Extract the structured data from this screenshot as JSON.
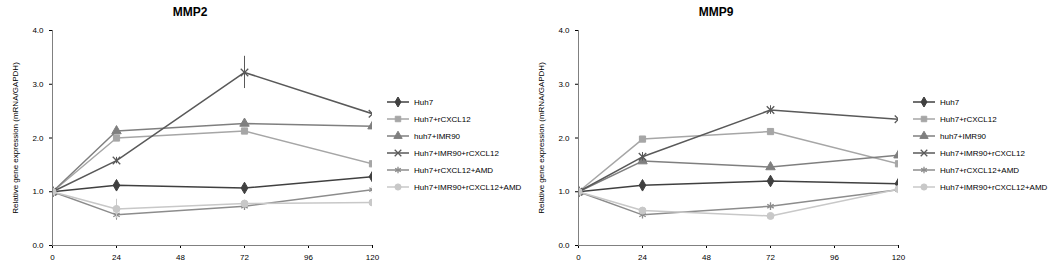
{
  "chart_data": [
    {
      "type": "line",
      "title": "MMP2",
      "y_label": "Relative gene expression (mRNA/GAPDH)",
      "x": [
        0,
        24,
        72,
        120
      ],
      "xlim": [
        0,
        120
      ],
      "xticks": [
        0,
        24,
        48,
        72,
        96,
        120
      ],
      "ylim": [
        0,
        4
      ],
      "yticks": [
        {
          "value": 0,
          "label": "0.0"
        },
        {
          "value": 1,
          "label": "1.0"
        },
        {
          "value": 2,
          "label": "2.0"
        },
        {
          "value": 3,
          "label": "3.0"
        },
        {
          "value": 4,
          "label": "4.0"
        }
      ],
      "legend": "right",
      "series": [
        {
          "name": "Huh7",
          "color": "#404040",
          "marker": "diamond",
          "values": [
            1.0,
            1.12,
            1.07,
            1.28
          ],
          "errors": [
            0,
            0.05,
            0.03,
            0.04
          ]
        },
        {
          "name": "Huh7+rCXCL12",
          "color": "#a6a6a6",
          "marker": "square",
          "values": [
            1.0,
            2.0,
            2.13,
            1.52
          ],
          "errors": [
            0,
            0.04,
            0.05,
            0.04
          ]
        },
        {
          "name": "huh7+IMR90",
          "color": "#7f7f7f",
          "marker": "triangle",
          "values": [
            1.0,
            2.13,
            2.27,
            2.22
          ],
          "errors": [
            0,
            0.04,
            0.04,
            0.05
          ]
        },
        {
          "name": "Huh7+IMR90+rCXCL12",
          "color": "#595959",
          "marker": "times",
          "values": [
            1.0,
            1.58,
            3.22,
            2.45
          ],
          "errors": [
            0,
            0.06,
            0.3,
            0.12
          ]
        },
        {
          "name": "Huh7+rCXCL12+AMD",
          "color": "#8c8c8c",
          "marker": "asterisk",
          "values": [
            1.0,
            0.57,
            0.73,
            1.04
          ],
          "errors": [
            0,
            0.1,
            0.07,
            0.08
          ]
        },
        {
          "name": "Huh7+IMR90+rCXCL12+AMD",
          "color": "#c8c8c8",
          "marker": "circle",
          "values": [
            1.0,
            0.68,
            0.78,
            0.8
          ],
          "errors": [
            0,
            0.18,
            0.06,
            0.18
          ]
        }
      ]
    },
    {
      "type": "line",
      "title": "MMP9",
      "y_label": "Relative gene expression (mRNA/GAPDH)",
      "x": [
        0,
        24,
        72,
        120
      ],
      "xlim": [
        0,
        120
      ],
      "xticks": [
        0,
        24,
        48,
        72,
        96,
        120
      ],
      "ylim": [
        0,
        4
      ],
      "yticks": [
        {
          "value": 0,
          "label": "0.0"
        },
        {
          "value": 1,
          "label": "1.0"
        },
        {
          "value": 2,
          "label": "2.0"
        },
        {
          "value": 3,
          "label": "3.0"
        },
        {
          "value": 4,
          "label": "4.0"
        }
      ],
      "legend": "right",
      "series": [
        {
          "name": "Huh7",
          "color": "#404040",
          "marker": "diamond",
          "values": [
            1.0,
            1.12,
            1.2,
            1.15
          ],
          "errors": [
            0,
            0.03,
            0.03,
            0.03
          ]
        },
        {
          "name": "Huh7+rCXCL12",
          "color": "#a6a6a6",
          "marker": "square",
          "values": [
            1.0,
            1.98,
            2.12,
            1.52
          ],
          "errors": [
            0,
            0.04,
            0.05,
            0.04
          ]
        },
        {
          "name": "huh7+IMR90",
          "color": "#7f7f7f",
          "marker": "triangle",
          "values": [
            1.0,
            1.57,
            1.46,
            1.68
          ],
          "errors": [
            0,
            0.04,
            0.04,
            0.12
          ]
        },
        {
          "name": "Huh7+IMR90+rCXCL12",
          "color": "#595959",
          "marker": "times",
          "values": [
            1.0,
            1.65,
            2.52,
            2.35
          ],
          "errors": [
            0,
            0.08,
            0.08,
            0.04
          ]
        },
        {
          "name": "Huh7+rCXCL12+AMD",
          "color": "#8c8c8c",
          "marker": "asterisk",
          "values": [
            1.0,
            0.57,
            0.73,
            1.04
          ],
          "errors": [
            0,
            0.04,
            0.06,
            0.05
          ]
        },
        {
          "name": "Huh7+IMR90+rCXCL12+AMD",
          "color": "#c8c8c8",
          "marker": "circle",
          "values": [
            1.0,
            0.65,
            0.55,
            1.05
          ],
          "errors": [
            0,
            0.04,
            0.04,
            0.04
          ]
        }
      ]
    }
  ]
}
